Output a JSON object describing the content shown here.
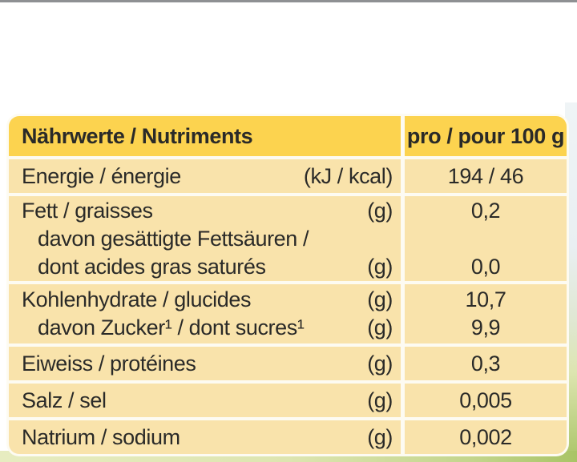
{
  "colors": {
    "header_bg": "#fcd34f",
    "row_bg": "#f9e3ab",
    "gap_color": "#fdfbf2",
    "text_color": "#2a2a28",
    "top_line": "#8e9093",
    "photo_green": "#a9c466",
    "photo_green_light": "#dde5b0",
    "photo_blue": "#eff4f6"
  },
  "table": {
    "header": {
      "title": "Nährwerte / Nutriments",
      "per_label": "pro / pour 100 g"
    },
    "rows": [
      {
        "lines": [
          {
            "label": "Energie / énergie",
            "unit": "(kJ / kcal)",
            "value": "194 / 46"
          }
        ]
      },
      {
        "lines": [
          {
            "label": "Fett / graisses",
            "unit": "(g)",
            "value": "0,2"
          },
          {
            "label": "davon gesättigte Fettsäuren /",
            "unit": "",
            "value": ""
          },
          {
            "label": "dont acides gras saturés",
            "unit": "(g)",
            "value": "0,0"
          }
        ]
      },
      {
        "lines": [
          {
            "label": "Kohlenhydrate / glucides",
            "unit": "(g)",
            "value": "10,7"
          },
          {
            "label": "davon Zucker¹ / dont sucres¹",
            "unit": "(g)",
            "value": "9,9"
          }
        ]
      },
      {
        "lines": [
          {
            "label": "Eiweiss / protéines",
            "unit": "(g)",
            "value": "0,3"
          }
        ]
      },
      {
        "lines": [
          {
            "label": "Salz / sel",
            "unit": "(g)",
            "value": "0,005"
          }
        ]
      },
      {
        "lines": [
          {
            "label": "Natrium / sodium",
            "unit": "(g)",
            "value": "0,002"
          }
        ]
      }
    ]
  }
}
